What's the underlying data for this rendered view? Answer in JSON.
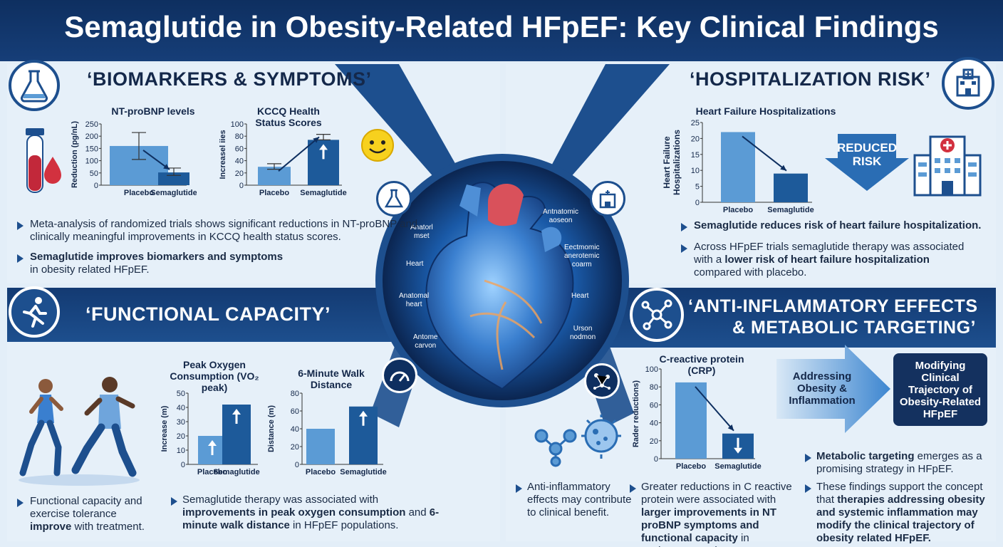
{
  "title": "Semaglutide in Obesity-Related HFpEF: Key Clinical Findings",
  "sections": {
    "biomarkers": {
      "title": "‘BIOMARKERS & SYMPTOMS’",
      "para1": "Meta-analysis of randomized trials shows significant reductions in NT-proBNP and clinically meaningful improvements in KCCQ health status scores.",
      "para2_bold": "Semaglutide improves biomarkers and symptoms",
      "para2_rest": " in obesity related HFpEF."
    },
    "hospitalization": {
      "title": "‘HOSPITALIZATION RISK’",
      "para1": "Semaglutide reduces risk of heart failure hospitalization.",
      "para2_a": "Across HFpEF trials semaglutide therapy was associated with a ",
      "para2_bold": "lower risk of heart failure hospitalization",
      "para2_c": " compared with placebo.",
      "reduced_risk": "REDUCED RISK"
    },
    "functional": {
      "title": "‘FUNCTIONAL CAPACITY’",
      "para1_a": "Functional capacity and exercise tolerance ",
      "para1_bold": "improve",
      "para1_c": " with treatment.",
      "para2_a": "Semaglutide therapy was associated with ",
      "para2_bold1": "improvements in peak oxygen consumption",
      "para2_b": " and ",
      "para2_bold2": "6-minute walk distance",
      "para2_c": " in HFpEF populations."
    },
    "inflammatory": {
      "title_line1": "‘ANTI-INFLAMMATORY EFFECTS",
      "title_line2": "& METABOLIC TARGETING’",
      "addressing": "Addressing Obesity & Inflammation",
      "modifying": "Modifying Clinical Trajectory of Obesity-Related HFpEF",
      "para1": "Anti-inflammatory effects may contribute to clinical benefit.",
      "para2_a": "Greater reductions in C reactive protein were associated with ",
      "para2_bold": "larger improvements in NT proBNP symptoms and functional capacity",
      "para2_c": " in exploratory analyses.",
      "para3_bold": "Metabolic targeting",
      "para3_rest": " emerges as a promising strategy in HFpEF.",
      "para4_a": "These findings support the concept that ",
      "para4_bold": "therapies addressing obesity and systemic inflammation may modify the clinical trajectory of obesity related HFpEF.",
      "para4_c": ""
    }
  },
  "heart_labels": {
    "l1_a": "Anatorl",
    "l1_b": "mset",
    "l2": "Heart",
    "l3_a": "Anatomal",
    "l3_b": "heart",
    "l4_a": "Antome",
    "l4_b": "carvon",
    "r1_a": "Antnatomic",
    "r1_b": "aoseon",
    "r2_a": "Eectmomic",
    "r2_b": "anerotemic",
    "r2_c": "coarm",
    "r3": "Heart",
    "r4_a": "Urson",
    "r4_b": "nodmon"
  },
  "colors": {
    "navy": "#14315f",
    "blue_dark": "#1d5a9a",
    "blue_light": "#5b9bd5",
    "background": "#e3eef8"
  },
  "chart_data": [
    {
      "type": "bar",
      "title": "NT-proBNP levels",
      "ylabel": "Reduction (pg/nL)",
      "categories": [
        "Placebo",
        "Semaglutide"
      ],
      "values": [
        160,
        52
      ],
      "error_high": [
        215,
        70
      ],
      "error_low": [
        105,
        40
      ],
      "ylim": [
        0,
        250
      ],
      "yticks": [
        "0",
        "50",
        "100",
        "150",
        "200",
        "250"
      ]
    },
    {
      "type": "bar",
      "title": "KCCQ Health Status Scores",
      "ylabel": "Increasel iies",
      "categories": [
        "Placebo",
        "Semaglutide"
      ],
      "values": [
        30,
        74
      ],
      "error_high": [
        35,
        83
      ],
      "error_low": [
        26,
        74
      ],
      "ylim": [
        0,
        100
      ],
      "yticks": [
        "0",
        "20",
        "40",
        "60",
        "80",
        "100"
      ]
    },
    {
      "type": "bar",
      "title": "Heart Failure Hospitalizations",
      "ylabel": "Heart Failure Hospitalizations",
      "categories": [
        "Placebo",
        "Semaglutide"
      ],
      "values": [
        22,
        9
      ],
      "ylim": [
        0,
        25
      ],
      "yticks": [
        "0",
        "5",
        "10",
        "15",
        "20",
        "25"
      ]
    },
    {
      "type": "bar",
      "title": "Peak Oxygen Consumption (VO₂ peak)",
      "ylabel": "Increase (m)",
      "categories": [
        "Placebo",
        "Semaglutide"
      ],
      "values": [
        20,
        42
      ],
      "ylim": [
        0,
        50
      ],
      "yticks": [
        "0",
        "10",
        "20",
        "30",
        "40",
        "50"
      ]
    },
    {
      "type": "bar",
      "title": "6-Minute Walk Distance",
      "ylabel": "Distance (m)",
      "categories": [
        "Placebo",
        "Semaglutide"
      ],
      "values": [
        40,
        65
      ],
      "ylim": [
        0,
        80
      ],
      "yticks": [
        "0",
        "20",
        "40",
        "60",
        "80"
      ]
    },
    {
      "type": "bar",
      "title": "C-reactive protein (CRP)",
      "ylabel": "Rader reductions)",
      "categories": [
        "Placebo",
        "Semaglutide"
      ],
      "values": [
        85,
        28
      ],
      "ylim": [
        0,
        100
      ],
      "yticks": [
        "0",
        "20",
        "40",
        "60",
        "80",
        "100"
      ]
    }
  ]
}
